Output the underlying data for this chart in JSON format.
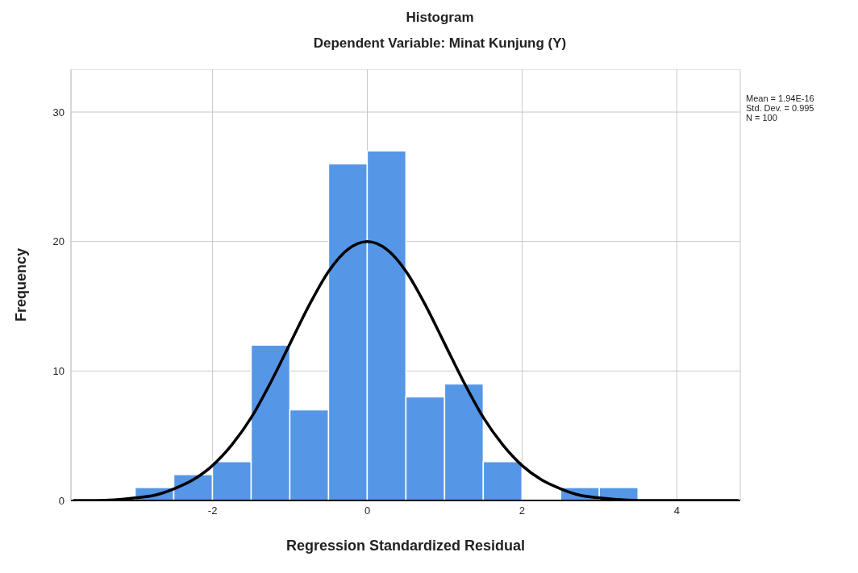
{
  "chart_data": {
    "type": "histogram",
    "title": "Histogram",
    "subtitle": "Dependent Variable: Minat Kunjung (Y)",
    "xlabel": "Regression Standardized Residual",
    "ylabel": "Frequency",
    "bins": [
      -3,
      -2.5,
      -2,
      -1.5,
      -1,
      -0.5,
      0,
      0.5,
      1,
      1.5,
      2,
      2.5,
      3,
      3.5
    ],
    "values": [
      1,
      2,
      3,
      12,
      7,
      26,
      27,
      8,
      9,
      3,
      0,
      1,
      1
    ],
    "color": "#5596e6",
    "series": [
      {
        "type": "line",
        "color": "#000000",
        "x": [
          -3.8,
          -3.5,
          -3,
          -2.75,
          -2.5,
          -2.25,
          -2,
          -1.75,
          -1.5,
          -1.25,
          -1,
          -0.75,
          -0.5,
          -0.25,
          0,
          0.25,
          0.5,
          0.75,
          1,
          1.25,
          1.5,
          1.75,
          2,
          2.25,
          2.5,
          2.75,
          3,
          3.5,
          4,
          4.8
        ],
        "values": [
          0,
          0,
          0.2,
          0.4,
          0.9,
          1.6,
          2.7,
          4.3,
          6.4,
          9.1,
          12.1,
          15.1,
          17.7,
          19.4,
          20,
          19.4,
          17.7,
          15.1,
          12.1,
          9.1,
          6.4,
          4.3,
          2.7,
          1.6,
          0.9,
          0.4,
          0.2,
          0,
          0,
          0
        ]
      }
    ],
    "xlim": [
      -3.83,
      4.82
    ],
    "xticks": [
      -2,
      0,
      2,
      4
    ],
    "ylim": [
      0,
      33.3
    ],
    "yticks": [
      0,
      10,
      20,
      30
    ],
    "grid": true,
    "annotations": [
      "Mean = 1.94E-16",
      "Std. Dev. = 0.995",
      "N = 100"
    ]
  }
}
